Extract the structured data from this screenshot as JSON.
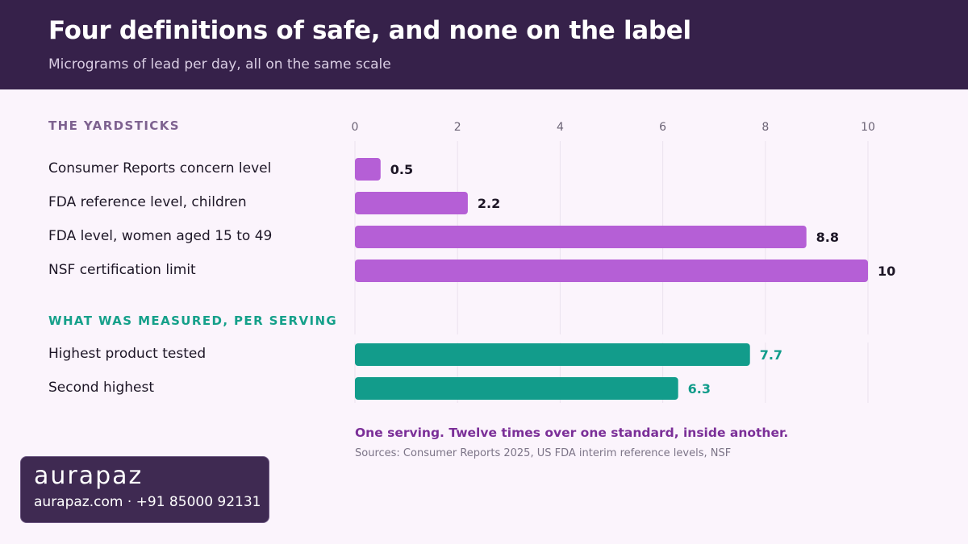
{
  "header": {
    "title": "Four definitions of safe, and none on the label",
    "subtitle": "Micrograms of lead per day, all on the same scale"
  },
  "sections": {
    "yardsticks": "THE YARDSTICKS",
    "measured": "WHAT WAS MEASURED, PER SERVING"
  },
  "chart_data": {
    "type": "bar",
    "orientation": "horizontal",
    "title": "Four definitions of safe, and none on the label",
    "subtitle": "Micrograms of lead per day, all on the same scale",
    "xlim": [
      0,
      10
    ],
    "ticks": [
      0,
      2,
      4,
      6,
      8,
      10
    ],
    "grid": true,
    "groups": [
      {
        "name": "THE YARDSTICKS",
        "color": "#b55fd6",
        "label_color": "#1d1626",
        "items": [
          {
            "label": "Consumer Reports concern level",
            "value": 0.5,
            "value_label": "0.5"
          },
          {
            "label": "FDA reference level, children",
            "value": 2.2,
            "value_label": "2.2"
          },
          {
            "label": "FDA level, women aged 15 to 49",
            "value": 8.8,
            "value_label": "8.8"
          },
          {
            "label": "NSF certification limit",
            "value": 10,
            "value_label": "10"
          }
        ]
      },
      {
        "name": "WHAT WAS MEASURED, PER SERVING",
        "color": "#129c8b",
        "label_color": "#129c8b",
        "items": [
          {
            "label": "Highest product tested",
            "value": 7.7,
            "value_label": "7.7"
          },
          {
            "label": "Second highest",
            "value": 6.3,
            "value_label": "6.3"
          }
        ]
      }
    ]
  },
  "footer": {
    "note": "One serving. Twelve times over one standard, inside another.",
    "source": "Sources: Consumer Reports 2025, US FDA interim reference levels, NSF"
  },
  "brand": {
    "logo": "aurapaz",
    "contact": "aurapaz.com · +91 85000 92131"
  },
  "colors": {
    "header_bg": "#36214a",
    "page_bg": "#fbf4fc",
    "yardstick_bar": "#b55fd6",
    "measured_bar": "#129c8b",
    "note": "#7b2f98"
  }
}
